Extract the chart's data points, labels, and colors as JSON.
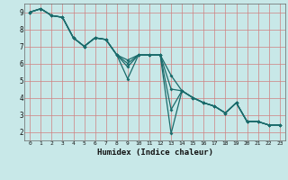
{
  "title": "",
  "xlabel": "Humidex (Indice chaleur)",
  "ylabel": "",
  "bg_color": "#c8e8e8",
  "grid_color": "#d08080",
  "line_color": "#1a6b6b",
  "xlim": [
    -0.5,
    23.5
  ],
  "ylim": [
    1.5,
    9.5
  ],
  "xticks": [
    0,
    1,
    2,
    3,
    4,
    5,
    6,
    7,
    8,
    9,
    10,
    11,
    12,
    13,
    14,
    15,
    16,
    17,
    18,
    19,
    20,
    21,
    22,
    23
  ],
  "yticks": [
    2,
    3,
    4,
    5,
    6,
    7,
    8,
    9
  ],
  "line1_x": [
    0,
    1,
    2,
    3,
    4,
    5,
    6,
    7,
    8,
    9,
    10,
    11,
    12,
    13,
    14,
    15,
    16,
    17,
    18,
    19,
    20,
    21,
    22,
    23
  ],
  "line1_y": [
    9.0,
    9.2,
    8.8,
    8.7,
    7.5,
    7.0,
    7.5,
    7.4,
    6.5,
    5.1,
    6.5,
    6.5,
    6.5,
    1.9,
    4.4,
    4.0,
    3.7,
    3.5,
    3.1,
    3.7,
    2.6,
    2.6,
    2.4,
    2.4
  ],
  "line2_x": [
    0,
    1,
    2,
    3,
    4,
    5,
    6,
    7,
    8,
    9,
    10,
    11,
    12,
    13,
    14,
    15,
    16,
    17,
    18,
    19,
    20,
    21,
    22,
    23
  ],
  "line2_y": [
    9.0,
    9.2,
    8.8,
    8.7,
    7.5,
    7.0,
    7.5,
    7.4,
    6.5,
    6.2,
    6.5,
    6.5,
    6.5,
    4.5,
    4.4,
    4.0,
    3.7,
    3.5,
    3.1,
    3.7,
    2.6,
    2.6,
    2.4,
    2.4
  ],
  "line3_x": [
    0,
    1,
    2,
    3,
    4,
    5,
    6,
    7,
    8,
    9,
    10,
    11,
    12,
    13,
    14,
    15,
    16,
    17,
    18,
    19,
    20,
    21,
    22,
    23
  ],
  "line3_y": [
    9.0,
    9.2,
    8.8,
    8.7,
    7.5,
    7.0,
    7.5,
    7.4,
    6.5,
    6.0,
    6.5,
    6.5,
    6.5,
    5.3,
    4.4,
    4.0,
    3.7,
    3.5,
    3.1,
    3.7,
    2.6,
    2.6,
    2.4,
    2.4
  ],
  "line4_x": [
    0,
    1,
    2,
    3,
    4,
    5,
    6,
    7,
    8,
    9,
    10,
    11,
    12,
    13,
    14,
    15,
    16,
    17,
    18,
    19,
    20,
    21,
    22,
    23
  ],
  "line4_y": [
    9.0,
    9.2,
    8.8,
    8.7,
    7.5,
    7.0,
    7.5,
    7.4,
    6.5,
    5.8,
    6.5,
    6.5,
    6.5,
    3.3,
    4.4,
    4.0,
    3.7,
    3.5,
    3.1,
    3.7,
    2.6,
    2.6,
    2.4,
    2.4
  ]
}
